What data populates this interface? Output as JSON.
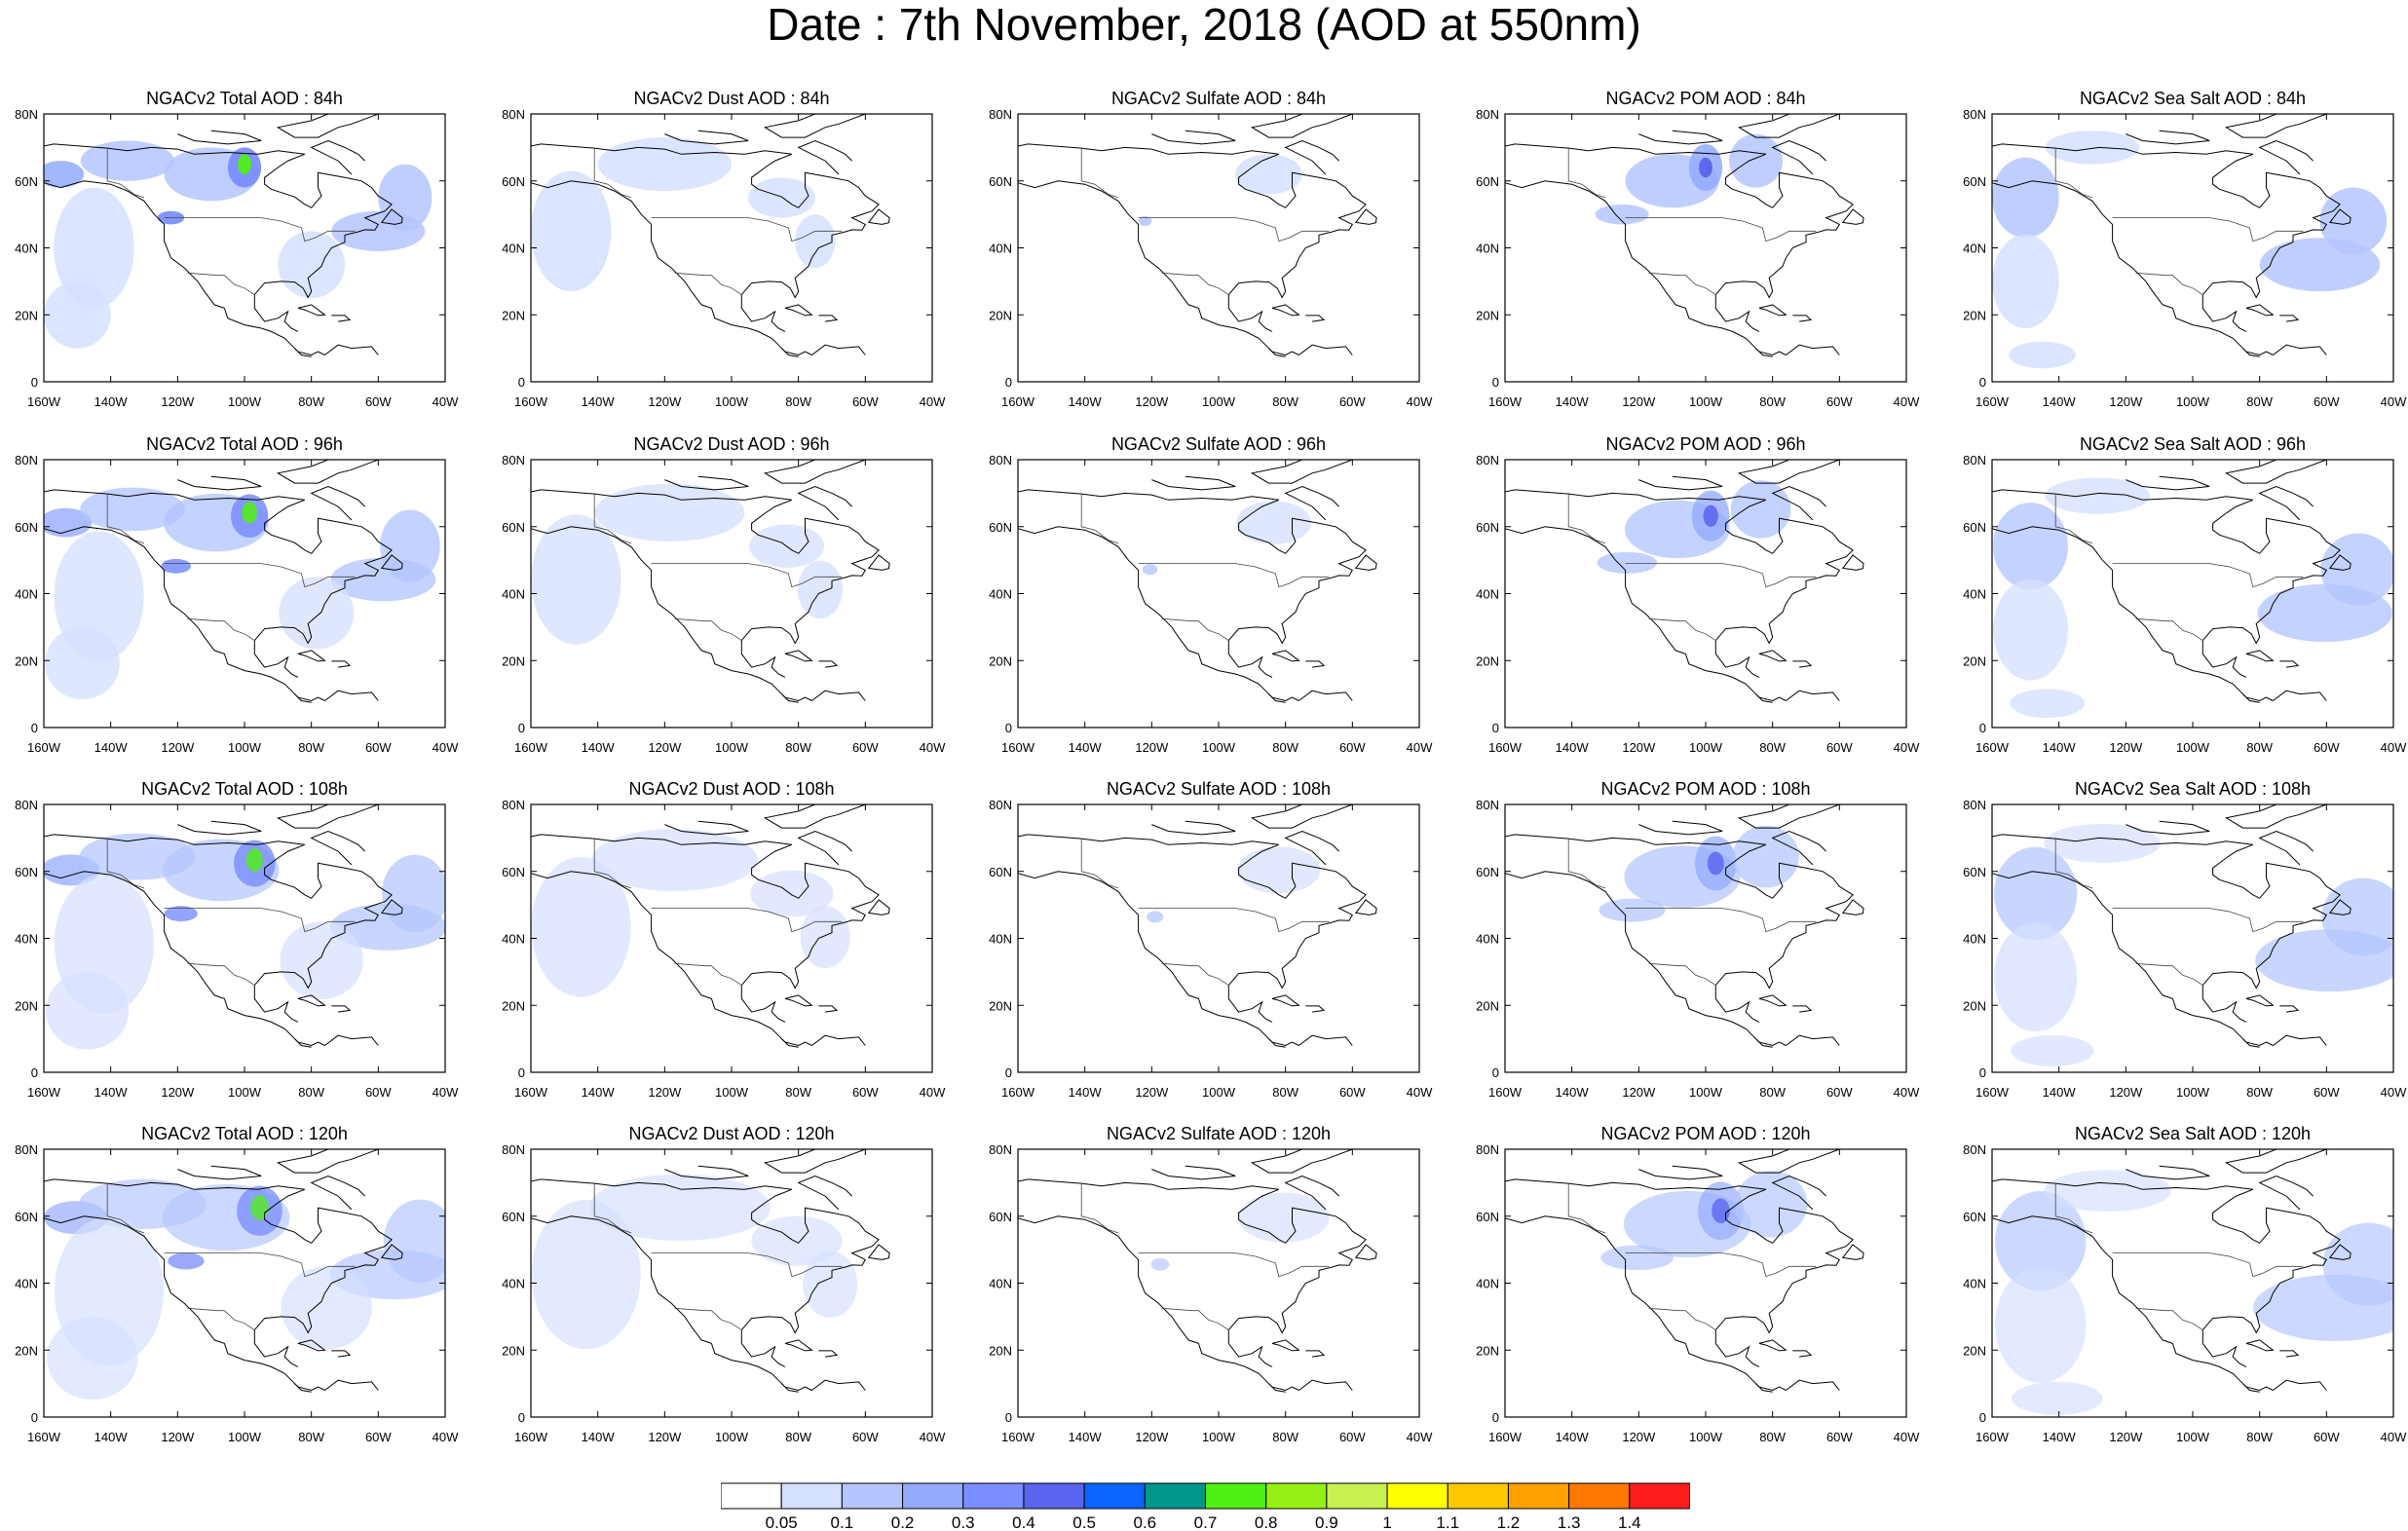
{
  "title": "Date : 7th November, 2018 (AOD at 550nm)",
  "lon_ticks": [
    "160W",
    "140W",
    "120W",
    "100W",
    "80W",
    "60W",
    "40W"
  ],
  "lat_ticks": [
    "0",
    "20N",
    "40N",
    "60N",
    "80N"
  ],
  "extent": {
    "lon_min": -160,
    "lon_max": -40,
    "lat_min": 0,
    "lat_max": 80
  },
  "panels": [
    {
      "title": "NGACv2 Total AOD : 84h",
      "species": "total",
      "forecast_hour": 84
    },
    {
      "title": "NGACv2 Dust AOD : 84h",
      "species": "dust",
      "forecast_hour": 84
    },
    {
      "title": "NGACv2 Sulfate AOD : 84h",
      "species": "sulfate",
      "forecast_hour": 84
    },
    {
      "title": "NGACv2 POM AOD : 84h",
      "species": "pom",
      "forecast_hour": 84
    },
    {
      "title": "NGACv2 Sea Salt AOD : 84h",
      "species": "seasalt",
      "forecast_hour": 84
    },
    {
      "title": "NGACv2 Total AOD : 96h",
      "species": "total",
      "forecast_hour": 96
    },
    {
      "title": "NGACv2 Dust AOD : 96h",
      "species": "dust",
      "forecast_hour": 96
    },
    {
      "title": "NGACv2 Sulfate AOD : 96h",
      "species": "sulfate",
      "forecast_hour": 96
    },
    {
      "title": "NGACv2 POM AOD : 96h",
      "species": "pom",
      "forecast_hour": 96
    },
    {
      "title": "NGACv2 Sea Salt AOD : 96h",
      "species": "seasalt",
      "forecast_hour": 96
    },
    {
      "title": "NGACv2 Total AOD : 108h",
      "species": "total",
      "forecast_hour": 108
    },
    {
      "title": "NGACv2 Dust AOD : 108h",
      "species": "dust",
      "forecast_hour": 108
    },
    {
      "title": "NGACv2 Sulfate AOD : 108h",
      "species": "sulfate",
      "forecast_hour": 108
    },
    {
      "title": "NGACv2 POM AOD : 108h",
      "species": "pom",
      "forecast_hour": 108
    },
    {
      "title": "NGACv2 Sea Salt AOD : 108h",
      "species": "seasalt",
      "forecast_hour": 108
    },
    {
      "title": "NGACv2 Total AOD : 120h",
      "species": "total",
      "forecast_hour": 120
    },
    {
      "title": "NGACv2 Dust AOD : 120h",
      "species": "dust",
      "forecast_hour": 120
    },
    {
      "title": "NGACv2 Sulfate AOD : 120h",
      "species": "sulfate",
      "forecast_hour": 120
    },
    {
      "title": "NGACv2 POM AOD : 120h",
      "species": "pom",
      "forecast_hour": 120
    },
    {
      "title": "NGACv2 Sea Salt  AOD : 120h",
      "species": "seasalt",
      "forecast_hour": 120
    }
  ],
  "colorbar": {
    "levels": [
      "0.05",
      "0.1",
      "0.2",
      "0.3",
      "0.4",
      "0.5",
      "0.6",
      "0.7",
      "0.8",
      "0.9",
      "1",
      "1.1",
      "1.2",
      "1.3",
      "1.4"
    ],
    "colors": [
      "#ffffff",
      "#d6e0ff",
      "#b4c5ff",
      "#93aaff",
      "#7a8eff",
      "#5a64ee",
      "#0a64ff",
      "#00968c",
      "#50f014",
      "#96f014",
      "#c8f050",
      "#ffff00",
      "#ffc800",
      "#ffa000",
      "#ff7800",
      "#ff1e1e"
    ]
  },
  "plumes": {
    "total": [
      {
        "lon": -155,
        "lat": 62,
        "rx": 7,
        "ry": 4,
        "level": 3
      },
      {
        "lon": -135,
        "lat": 66,
        "rx": 14,
        "ry": 6,
        "level": 2
      },
      {
        "lon": -110,
        "lat": 62,
        "rx": 14,
        "ry": 8,
        "level": 2
      },
      {
        "lon": -100,
        "lat": 64,
        "rx": 5,
        "ry": 6,
        "level": 4
      },
      {
        "lon": -100,
        "lat": 65,
        "rx": 2,
        "ry": 3,
        "level": 8
      },
      {
        "lon": -122,
        "lat": 49,
        "rx": 4,
        "ry": 2,
        "level": 4
      },
      {
        "lon": -145,
        "lat": 40,
        "rx": 12,
        "ry": 18,
        "level": 1
      },
      {
        "lon": -150,
        "lat": 20,
        "rx": 10,
        "ry": 10,
        "level": 1
      },
      {
        "lon": -60,
        "lat": 45,
        "rx": 14,
        "ry": 6,
        "level": 2
      },
      {
        "lon": -52,
        "lat": 55,
        "rx": 8,
        "ry": 10,
        "level": 2
      },
      {
        "lon": -80,
        "lat": 35,
        "rx": 10,
        "ry": 10,
        "level": 1
      }
    ],
    "dust": [
      {
        "lon": -148,
        "lat": 45,
        "rx": 12,
        "ry": 18,
        "level": 1
      },
      {
        "lon": -120,
        "lat": 65,
        "rx": 20,
        "ry": 8,
        "level": 1
      },
      {
        "lon": -75,
        "lat": 42,
        "rx": 6,
        "ry": 8,
        "level": 1
      },
      {
        "lon": -85,
        "lat": 55,
        "rx": 10,
        "ry": 6,
        "level": 1
      }
    ],
    "sulfate": [
      {
        "lon": -85,
        "lat": 62,
        "rx": 10,
        "ry": 6,
        "level": 1
      },
      {
        "lon": -122,
        "lat": 48,
        "rx": 2,
        "ry": 1.5,
        "level": 2
      }
    ],
    "pom": [
      {
        "lon": -110,
        "lat": 60,
        "rx": 14,
        "ry": 8,
        "level": 2
      },
      {
        "lon": -100,
        "lat": 64,
        "rx": 5,
        "ry": 7,
        "level": 3
      },
      {
        "lon": -100,
        "lat": 64,
        "rx": 2,
        "ry": 3,
        "level": 5
      },
      {
        "lon": -125,
        "lat": 50,
        "rx": 8,
        "ry": 3,
        "level": 2
      },
      {
        "lon": -85,
        "lat": 66,
        "rx": 8,
        "ry": 8,
        "level": 2
      }
    ],
    "seasalt": [
      {
        "lon": -150,
        "lat": 55,
        "rx": 10,
        "ry": 12,
        "level": 2
      },
      {
        "lon": -150,
        "lat": 30,
        "rx": 10,
        "ry": 14,
        "level": 1
      },
      {
        "lon": -62,
        "lat": 35,
        "rx": 18,
        "ry": 8,
        "level": 2
      },
      {
        "lon": -52,
        "lat": 48,
        "rx": 10,
        "ry": 10,
        "level": 2
      },
      {
        "lon": -130,
        "lat": 70,
        "rx": 14,
        "ry": 5,
        "level": 1
      },
      {
        "lon": -145,
        "lat": 8,
        "rx": 10,
        "ry": 4,
        "level": 1
      }
    ]
  }
}
